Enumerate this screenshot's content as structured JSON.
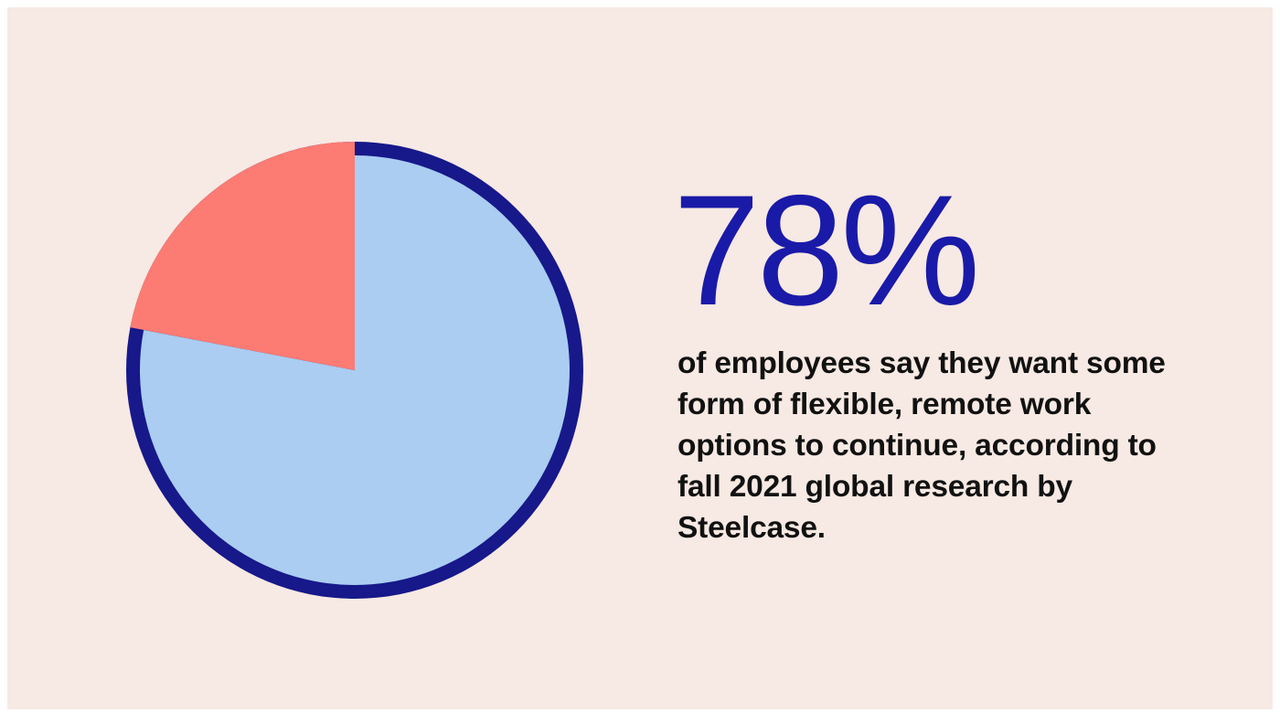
{
  "chart_data": {
    "type": "pie",
    "values": [
      78,
      22
    ],
    "colors": [
      "#aacdf1",
      "#fc7b73"
    ],
    "outline_color": "#17188a",
    "start": "12 o'clock",
    "direction": "clockwise"
  },
  "stat": {
    "value": "78%",
    "description": "of employees say they want some form of flexible, remote work options to continue, according to fall 2021 global research by Steelcase."
  },
  "colors": {
    "background": "#f7e9e3",
    "stat_text": "#1a1aa8",
    "body_text": "#111111"
  }
}
